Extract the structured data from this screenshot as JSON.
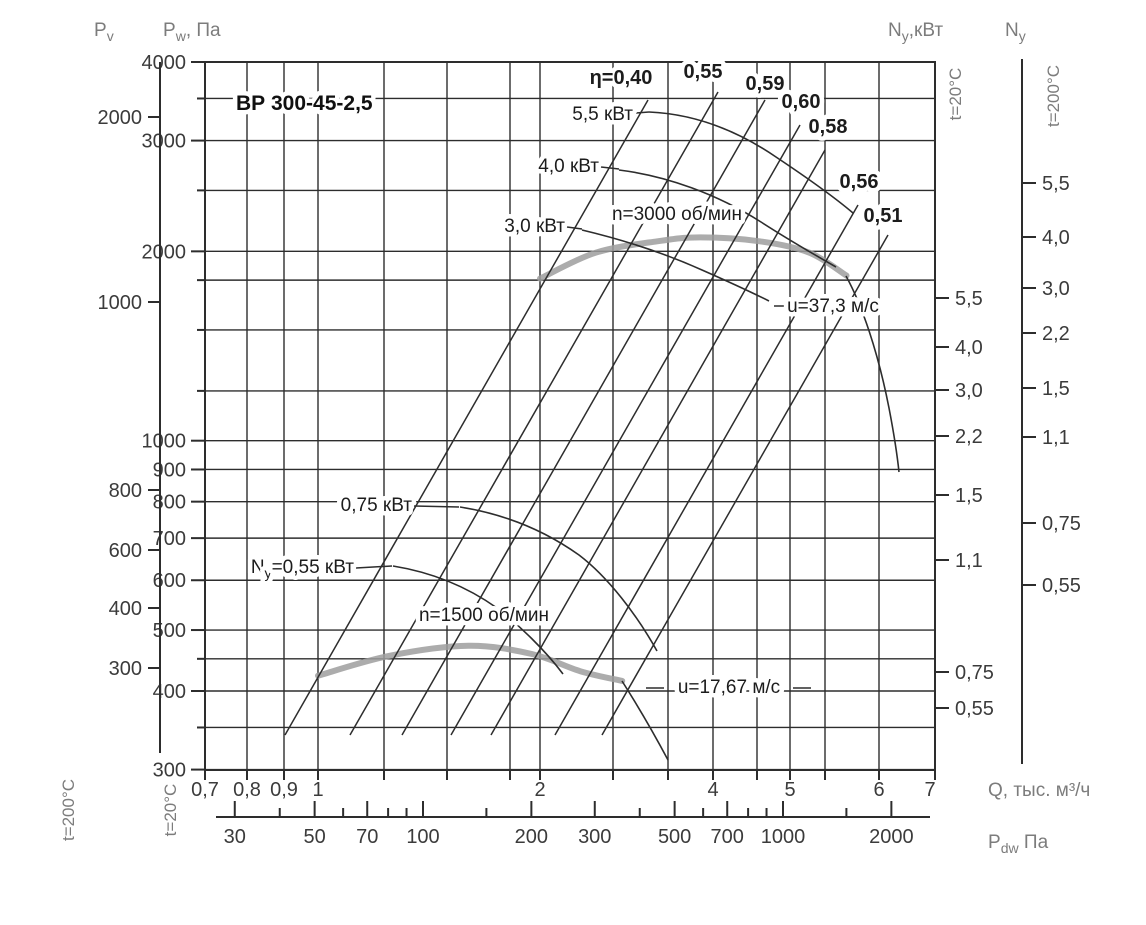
{
  "title": "ВР 300-45-2,5",
  "axis_titles": {
    "pv": {
      "base": "P",
      "sub": "v",
      "rest": ""
    },
    "pw": {
      "base": "P",
      "sub": "w",
      "rest": ", Па"
    },
    "ny_kw": {
      "base": "N",
      "sub": "y",
      "rest": ",кВт"
    },
    "ny": {
      "base": "N",
      "sub": "y",
      "rest": ""
    },
    "pdw": {
      "base": "P",
      "sub": "dw",
      "rest": " Па"
    },
    "q": "Q, тыс. м³/ч"
  },
  "temperature_labels": {
    "t20": "t=20°C",
    "t200": "t=200°C"
  },
  "axes": {
    "pw_ticks": [
      "4000",
      "3000",
      "2000",
      "1000",
      "900",
      "800",
      "700",
      "600",
      "500",
      "400",
      "300"
    ],
    "pv_ticks": [
      "2000",
      "1000",
      "800",
      "600",
      "400",
      "300"
    ],
    "q_ticks": [
      "0,7",
      "0,8",
      "0,9",
      "1",
      "2",
      "4",
      "5",
      "6",
      "7"
    ],
    "pdw_ticks": [
      "30",
      "50",
      "70",
      "100",
      "200",
      "300",
      "500",
      "700",
      "1000",
      "2000"
    ],
    "ny20_ticks": [
      "5,5",
      "4,0",
      "3,0",
      "2,2",
      "1,5",
      "1,1",
      "0,75",
      "0,55"
    ],
    "ny200_ticks": [
      "5,5",
      "4,0",
      "3,0",
      "2,2",
      "1,5",
      "1,1",
      "0,75",
      "0,55"
    ]
  },
  "curve_labels": {
    "eta": [
      "η=0,40",
      "0,55",
      "0,59",
      "0,60",
      "0,58",
      "0,56",
      "0,51"
    ],
    "power": [
      "5,5 кВт",
      "4,0 кВт",
      "3,0 кВт",
      "0,75 кВт"
    ],
    "power_ny": {
      "base": "N",
      "sub": "y",
      "rest": "=0,55 кВт"
    },
    "speed_high": "n=3000 об/мин",
    "speed_low": "n=1500 об/мин",
    "u_high": "u=37,3 м/с",
    "u_low": "u=17,67 м/с"
  },
  "colors": {
    "grid": "#2d2d2d",
    "thin_curve": "#2d2d2d",
    "thick_curve": "#9d9d9d",
    "tick_text": "#3b3b3b",
    "axis_title_text": "#7c7c7c",
    "label_text": "#1c1c1c"
  },
  "chart_data": {
    "type": "line",
    "title": "ВР 300-45-2,5",
    "xlabel": "Q, тыс. м³/ч",
    "ylabel": "Pw, Па (t=20°C)",
    "x_scale": "log",
    "y_scale": "log",
    "xlim": [
      0.7,
      7
    ],
    "ylim": [
      300,
      4000
    ],
    "grid": true,
    "series": [
      {
        "name": "Давление n=3000 об/мин (u=37,3 м/с)",
        "x": [
          2.0,
          2.5,
          3.2,
          3.8,
          4.5,
          5.1,
          5.6
        ],
        "y": [
          1810,
          1990,
          2075,
          2105,
          2075,
          1990,
          1830
        ]
      },
      {
        "name": "Давление n=1500 об/мин (u=17,67 м/с)",
        "x": [
          1.0,
          1.25,
          1.6,
          1.95,
          2.35,
          2.78
        ],
        "y": [
          423,
          455,
          472,
          458,
          430,
          415
        ]
      }
    ],
    "efficiency_lines": [
      0.4,
      0.55,
      0.59,
      0.6,
      0.58,
      0.56,
      0.51
    ],
    "power_curves_kw": [
      5.5,
      4.0,
      3.0,
      0.75,
      0.55
    ],
    "speeds_rpm": [
      3000,
      1500
    ],
    "tip_speeds_ms": [
      37.3,
      17.67
    ],
    "secondary_axes": {
      "pv_t200_pa": [
        2000,
        1000,
        800,
        600,
        400,
        300
      ],
      "pw_t20_pa": [
        4000,
        3000,
        2000,
        1000,
        900,
        800,
        700,
        600,
        500,
        400,
        300
      ],
      "ny_t20_kw": [
        5.5,
        4.0,
        3.0,
        2.2,
        1.5,
        1.1,
        0.75,
        0.55
      ],
      "ny_t200_kw": [
        5.5,
        4.0,
        3.0,
        2.2,
        1.5,
        1.1,
        0.75,
        0.55
      ],
      "q_thousand_m3h": [
        0.7,
        0.8,
        0.9,
        1,
        2,
        4,
        5,
        6,
        7
      ],
      "pdw_pa": [
        30,
        50,
        70,
        100,
        200,
        300,
        500,
        700,
        1000,
        2000
      ]
    }
  }
}
